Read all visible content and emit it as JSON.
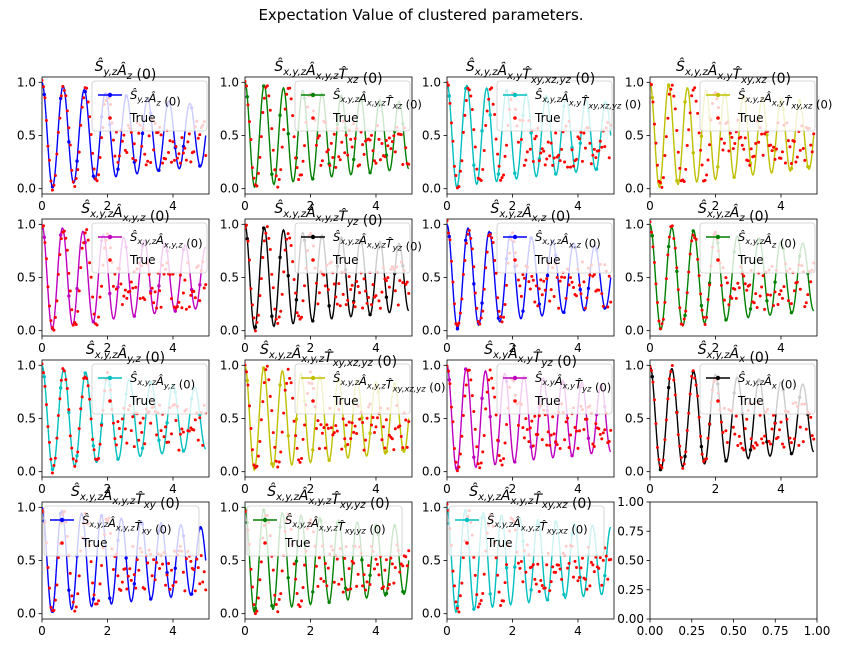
{
  "figure": {
    "title": "Expectation Value of clustered parameters."
  },
  "chart_data": [
    {
      "type": "line",
      "title": "Ŝ_y,z Â_z (0)",
      "x_ticks": [
        "0",
        "2",
        "4"
      ],
      "y_ticks": [
        "0.0",
        "0.5",
        "1.0"
      ],
      "xlim": [
        0,
        5.1
      ],
      "ylim": [
        -0.05,
        1.05
      ],
      "legend_position": "upper right",
      "series": [
        {
          "name": "Ŝ_y,z Â_z (0)",
          "color": "#0000ff",
          "marker": "point",
          "freq": 1.55,
          "decay": 0.12
        },
        {
          "name": "True",
          "color": "#ff0000",
          "marker": "point",
          "freq": 1.5,
          "decay": 0.12
        }
      ]
    },
    {
      "type": "line",
      "title": "Ŝ_x,y,z Â_x,y,z T̂_xz (0)",
      "x_ticks": [
        "0",
        "2",
        "4"
      ],
      "y_ticks": [
        "0.0",
        "0.5",
        "1.0"
      ],
      "xlim": [
        0,
        5.1
      ],
      "ylim": [
        -0.05,
        1.05
      ],
      "legend_position": "upper right",
      "series": [
        {
          "name": "Ŝ_x,y,z Â_x,y,z T̂_xz (0)",
          "color": "#008000",
          "marker": "point",
          "freq": 1.7,
          "decay": 0.1
        },
        {
          "name": "True",
          "color": "#ff0000",
          "marker": "point",
          "freq": 1.5,
          "decay": 0.12
        }
      ]
    },
    {
      "type": "line",
      "title": "Ŝ_x,y,z Â_x,y T̂_xy,xz,yz (0)",
      "x_ticks": [
        "0",
        "2",
        "4"
      ],
      "y_ticks": [
        "0.0",
        "0.5",
        "1.0"
      ],
      "xlim": [
        0,
        5.1
      ],
      "ylim": [
        -0.05,
        1.05
      ],
      "legend_position": "upper right",
      "series": [
        {
          "name": "Ŝ_x,y,z Â_x,y T̂_xy,xz,yz (0)",
          "color": "#00bfbf",
          "marker": "point",
          "freq": 1.65,
          "decay": 0.1
        },
        {
          "name": "True",
          "color": "#ff0000",
          "marker": "point",
          "freq": 1.5,
          "decay": 0.12
        }
      ]
    },
    {
      "type": "line",
      "title": "Ŝ_x,y,z Â_x,y T̂_xy,xz (0)",
      "x_ticks": [
        "0",
        "2",
        "4"
      ],
      "y_ticks": [
        "0.0",
        "0.5",
        "1.0"
      ],
      "xlim": [
        0,
        5.1
      ],
      "ylim": [
        -0.05,
        1.05
      ],
      "legend_position": "upper right",
      "series": [
        {
          "name": "Ŝ_x,y,z Â_x,y T̂_xy,xz (0)",
          "color": "#bfbf00",
          "marker": "point",
          "freq": 1.75,
          "decay": 0.1
        },
        {
          "name": "True",
          "color": "#ff0000",
          "marker": "point",
          "freq": 1.5,
          "decay": 0.12
        }
      ]
    },
    {
      "type": "line",
      "title": "Ŝ_x,y,z Â_x,y,z (0)",
      "x_ticks": [
        "0",
        "2",
        "4"
      ],
      "y_ticks": [
        "0.0",
        "0.5",
        "1.0"
      ],
      "xlim": [
        0,
        5.1
      ],
      "ylim": [
        -0.05,
        1.05
      ],
      "legend_position": "upper right",
      "series": [
        {
          "name": "Ŝ_x,y,z Â_x,y,z (0)",
          "color": "#bf00bf",
          "marker": "point",
          "freq": 1.6,
          "decay": 0.12
        },
        {
          "name": "True",
          "color": "#ff0000",
          "marker": "point",
          "freq": 1.5,
          "decay": 0.12
        }
      ]
    },
    {
      "type": "line",
      "title": "Ŝ_x,y,z Â_x,y,z T̂_yz (0)",
      "x_ticks": [
        "0",
        "2",
        "4"
      ],
      "y_ticks": [
        "0.0",
        "0.5",
        "1.0"
      ],
      "xlim": [
        0,
        5.1
      ],
      "ylim": [
        -0.05,
        1.05
      ],
      "legend_position": "upper right",
      "series": [
        {
          "name": "Ŝ_x,y,z Â_x,y,z T̂_yz (0)",
          "color": "#000000",
          "marker": "point",
          "freq": 1.7,
          "decay": 0.1
        },
        {
          "name": "True",
          "color": "#ff0000",
          "marker": "point",
          "freq": 1.5,
          "decay": 0.12
        }
      ]
    },
    {
      "type": "line",
      "title": "Ŝ_x,y,z Â_x,z (0)",
      "x_ticks": [
        "0",
        "2",
        "4"
      ],
      "y_ticks": [
        "0.0",
        "0.5",
        "1.0"
      ],
      "xlim": [
        0,
        5.1
      ],
      "ylim": [
        -0.05,
        1.05
      ],
      "legend_position": "upper right",
      "series": [
        {
          "name": "Ŝ_x,y,z Â_x,z (0)",
          "color": "#0000ff",
          "marker": "point",
          "freq": 1.55,
          "decay": 0.12
        },
        {
          "name": "True",
          "color": "#ff0000",
          "marker": "point",
          "freq": 1.5,
          "decay": 0.12
        }
      ]
    },
    {
      "type": "line",
      "title": "Ŝ_x,y,z Â_z (0)",
      "x_ticks": [
        "0",
        "2",
        "4"
      ],
      "y_ticks": [
        "0.0",
        "0.5",
        "1.0"
      ],
      "xlim": [
        0,
        5.1
      ],
      "ylim": [
        -0.05,
        1.05
      ],
      "legend_position": "upper right",
      "series": [
        {
          "name": "Ŝ_x,y,z Â_z (0)",
          "color": "#008000",
          "marker": "point",
          "freq": 1.5,
          "decay": 0.1
        },
        {
          "name": "True",
          "color": "#ff0000",
          "marker": "point",
          "freq": 1.5,
          "decay": 0.12
        }
      ]
    },
    {
      "type": "line",
      "title": "Ŝ_x,y,z Â_y,z (0)",
      "x_ticks": [
        "0",
        "2",
        "4"
      ],
      "y_ticks": [
        "0.0",
        "0.5",
        "1.0"
      ],
      "xlim": [
        0,
        5.1
      ],
      "ylim": [
        -0.05,
        1.05
      ],
      "legend_position": "upper right",
      "series": [
        {
          "name": "Ŝ_x,y,z Â_y,z (0)",
          "color": "#00bfbf",
          "marker": "point",
          "freq": 1.5,
          "decay": 0.12
        },
        {
          "name": "True",
          "color": "#ff0000",
          "marker": "point",
          "freq": 1.5,
          "decay": 0.12
        }
      ]
    },
    {
      "type": "line",
      "title": "Ŝ_x,y,z Â_x,y,z T̂_xy,xz,yz (0)",
      "x_ticks": [
        "0",
        "2",
        "4"
      ],
      "y_ticks": [
        "0.0",
        "0.5",
        "1.0"
      ],
      "xlim": [
        0,
        5.1
      ],
      "ylim": [
        -0.05,
        1.05
      ],
      "legend_position": "upper right",
      "series": [
        {
          "name": "Ŝ_x,y,z Â_x,y,z T̂_xy,xz,yz (0)",
          "color": "#bfbf00",
          "marker": "point",
          "freq": 1.75,
          "decay": 0.1
        },
        {
          "name": "True",
          "color": "#ff0000",
          "marker": "point",
          "freq": 1.5,
          "decay": 0.12
        }
      ]
    },
    {
      "type": "line",
      "title": "Ŝ_x,y Â_x,y T̂_yz (0)",
      "x_ticks": [
        "0",
        "2",
        "4"
      ],
      "y_ticks": [
        "0.0",
        "0.5",
        "1.0"
      ],
      "xlim": [
        0,
        5.1
      ],
      "ylim": [
        -0.05,
        1.05
      ],
      "legend_position": "upper right",
      "series": [
        {
          "name": "Ŝ_x,y Â_x,y T̂_yz (0)",
          "color": "#bf00bf",
          "marker": "point",
          "freq": 1.7,
          "decay": 0.1
        },
        {
          "name": "True",
          "color": "#ff0000",
          "marker": "point",
          "freq": 1.5,
          "decay": 0.12
        }
      ]
    },
    {
      "type": "line",
      "title": "Ŝ_x,y,z Â_x (0)",
      "x_ticks": [
        "0",
        "2",
        "4"
      ],
      "y_ticks": [
        "0.0",
        "0.5",
        "1.0"
      ],
      "xlim": [
        0,
        5.1
      ],
      "ylim": [
        -0.05,
        1.05
      ],
      "legend_position": "upper right",
      "series": [
        {
          "name": "Ŝ_x,y,z Â_x (0)",
          "color": "#000000",
          "marker": "point",
          "freq": 1.5,
          "decay": 0.1
        },
        {
          "name": "True",
          "color": "#ff0000",
          "marker": "point",
          "freq": 1.5,
          "decay": 0.12
        }
      ]
    },
    {
      "type": "line",
      "title": "Ŝ_x,y,z Â_x,y,z T̂_xy (0)",
      "x_ticks": [
        "0",
        "2",
        "4"
      ],
      "y_ticks": [
        "0.0",
        "0.5",
        "1.0"
      ],
      "xlim": [
        0,
        5.1
      ],
      "ylim": [
        -0.05,
        1.05
      ],
      "legend_position": "upper left",
      "series": [
        {
          "name": "Ŝ_x,y,z Â_x,y,z T̂_xy (0)",
          "color": "#0000ff",
          "marker": "point",
          "freq": 1.65,
          "decay": 0.1
        },
        {
          "name": "True",
          "color": "#ff0000",
          "marker": "point",
          "freq": 1.5,
          "decay": 0.12
        }
      ]
    },
    {
      "type": "line",
      "title": "Ŝ_x,y,z Â_x,y,z T̂_xy,yz (0)",
      "x_ticks": [
        "0",
        "2",
        "4"
      ],
      "y_ticks": [
        "0.0",
        "0.5",
        "1.0"
      ],
      "xlim": [
        0,
        5.1
      ],
      "ylim": [
        -0.05,
        1.05
      ],
      "legend_position": "upper left",
      "series": [
        {
          "name": "Ŝ_x,y,z Â_x,y,z T̂_xy,yz (0)",
          "color": "#008000",
          "marker": "point",
          "freq": 1.75,
          "decay": 0.1
        },
        {
          "name": "True",
          "color": "#ff0000",
          "marker": "point",
          "freq": 1.5,
          "decay": 0.12
        }
      ]
    },
    {
      "type": "line",
      "title": "Ŝ_x,y,z Â_x,y,z T̂_xy,xz (0)",
      "x_ticks": [
        "0",
        "2",
        "4"
      ],
      "y_ticks": [
        "0.0",
        "0.5",
        "1.0"
      ],
      "xlim": [
        0,
        5.1
      ],
      "ylim": [
        -0.05,
        1.05
      ],
      "legend_position": "upper left",
      "series": [
        {
          "name": "Ŝ_x,y,z Â_x,y,z T̂_xy,xz (0)",
          "color": "#00bfbf",
          "marker": "point",
          "freq": 1.8,
          "decay": 0.1
        },
        {
          "name": "True",
          "color": "#ff0000",
          "marker": "point",
          "freq": 1.5,
          "decay": 0.12
        }
      ]
    },
    {
      "type": "empty",
      "title": "",
      "x_ticks": [
        "0.00",
        "0.25",
        "0.50",
        "0.75",
        "1.00"
      ],
      "y_ticks": [
        "0.00",
        "0.25",
        "0.50",
        "0.75",
        "1.00"
      ],
      "xlim": [
        0,
        1
      ],
      "ylim": [
        0,
        1
      ],
      "series": []
    }
  ]
}
